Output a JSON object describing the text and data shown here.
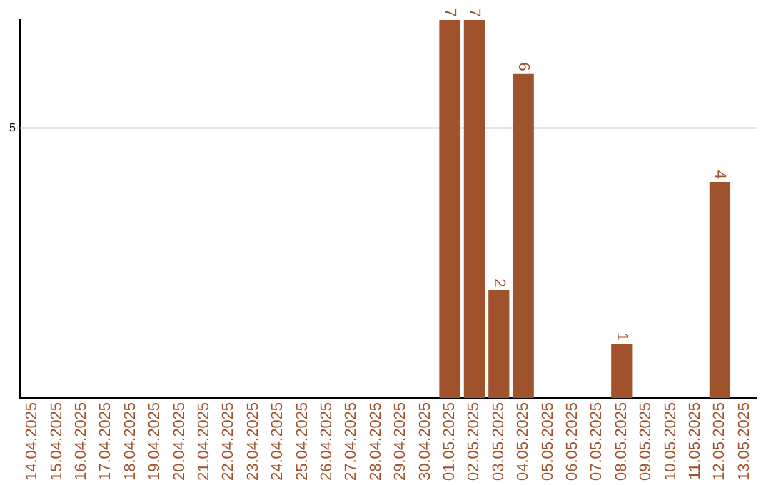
{
  "chart_data": {
    "type": "bar",
    "categories": [
      "14.04.2025",
      "15.04.2025",
      "16.04.2025",
      "17.04.2025",
      "18.04.2025",
      "19.04.2025",
      "20.04.2025",
      "21.04.2025",
      "22.04.2025",
      "23.04.2025",
      "24.04.2025",
      "25.04.2025",
      "26.04.2025",
      "27.04.2025",
      "28.04.2025",
      "29.04.2025",
      "30.04.2025",
      "01.05.2025",
      "02.05.2025",
      "03.05.2025",
      "04.05.2025",
      "05.05.2025",
      "06.05.2025",
      "07.05.2025",
      "08.05.2025",
      "09.05.2025",
      "10.05.2025",
      "11.05.2025",
      "12.05.2025",
      "13.05.2025"
    ],
    "values": [
      null,
      null,
      null,
      null,
      null,
      null,
      null,
      null,
      null,
      null,
      null,
      null,
      null,
      null,
      null,
      null,
      null,
      7,
      7,
      2,
      6,
      null,
      null,
      null,
      1,
      null,
      null,
      null,
      4,
      null
    ],
    "data_labels": true,
    "ylim": [
      0,
      7
    ],
    "color": "#a0522d",
    "ref_lines": [
      {
        "axis": "y",
        "value": 5,
        "label": "5",
        "color": "#cccccc"
      }
    ],
    "legend": false
  }
}
